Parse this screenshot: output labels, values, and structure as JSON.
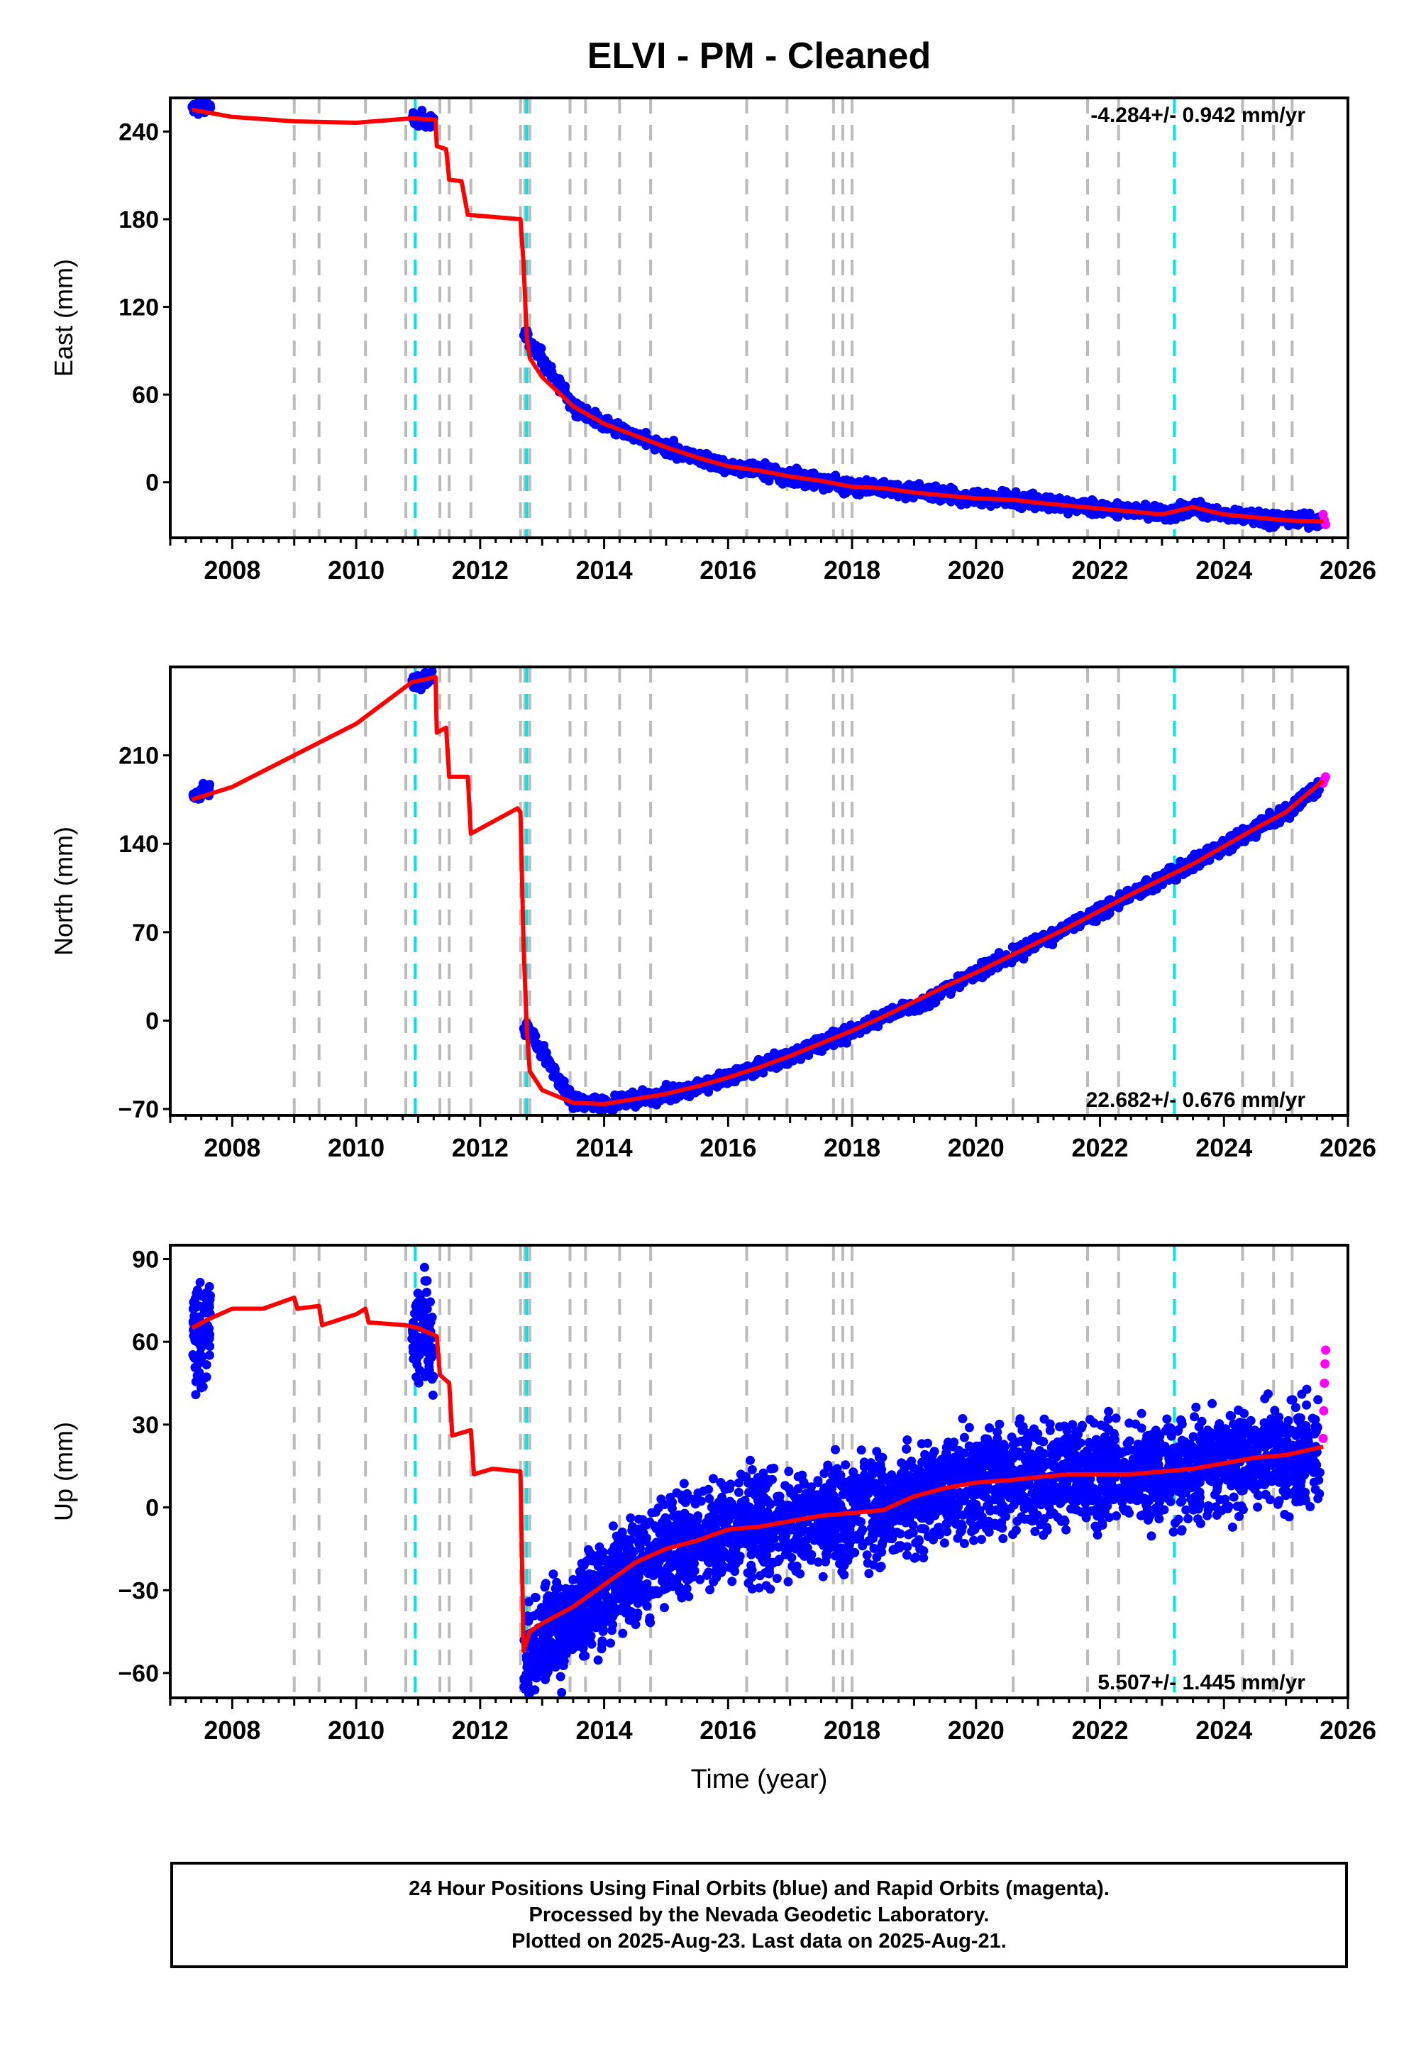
{
  "title": "ELVI  - PM - Cleaned",
  "colors": {
    "final": "#0000ff",
    "rapid": "#ff00ff",
    "model": "#ff0000",
    "event_gray": "#bbbbbb",
    "event_cyan": "#00e5e5"
  },
  "xaxis": {
    "label": "Time (year)",
    "range": [
      2007.0,
      2026.0
    ],
    "ticks": [
      2008,
      2010,
      2012,
      2014,
      2016,
      2018,
      2020,
      2022,
      2024,
      2026
    ]
  },
  "events": {
    "gray": [
      2009.0,
      2009.4,
      2010.15,
      2010.8,
      2011.35,
      2011.5,
      2011.85,
      2012.65,
      2012.72,
      2012.8,
      2013.45,
      2013.7,
      2014.25,
      2014.75,
      2016.3,
      2016.95,
      2017.7,
      2017.85,
      2018.0,
      2020.6,
      2021.8,
      2022.3,
      2024.3,
      2024.8,
      2025.1
    ],
    "cyan": [
      2010.95,
      2012.75,
      2023.2
    ]
  },
  "footer": {
    "line1": "24 Hour Positions Using Final Orbits (blue) and Rapid Orbits (magenta).",
    "line2": "Processed by the Nevada Geodetic Laboratory.",
    "line3": "Plotted on 2025-Aug-23. Last data on 2025-Aug-21."
  },
  "chart_data": [
    {
      "type": "scatter",
      "component": "East",
      "ylabel": "East (mm)",
      "ylim": [
        -38,
        263
      ],
      "yticks": [
        240,
        180,
        120,
        60,
        0
      ],
      "ytick_labels": [
        "240",
        "180",
        "120",
        "60",
        "0"
      ],
      "velocity": "-4.284+/- 0.942 mm/yr",
      "velocity_position": "top-right",
      "series": [
        {
          "role": "model",
          "x": [
            2007.35,
            2008.0,
            2009.0,
            2010.0,
            2010.9,
            2011.28,
            2011.3,
            2011.45,
            2011.5,
            2011.7,
            2011.8,
            2012.65,
            2012.7,
            2012.75,
            2012.8,
            2013.0,
            2013.5,
            2014.0,
            2014.5,
            2015.0,
            2015.5,
            2016.0,
            2016.5,
            2017.0,
            2017.5,
            2018.0,
            2018.5,
            2019.0,
            2019.5,
            2020.0,
            2020.6,
            2021.0,
            2021.5,
            2022.0,
            2022.5,
            2023.0,
            2023.5,
            2024.0,
            2024.5,
            2025.0,
            2025.6
          ],
          "y": [
            255,
            250,
            247,
            246,
            249,
            248,
            230,
            228,
            207,
            206,
            183,
            180,
            150,
            100,
            85,
            72,
            52,
            40,
            32,
            24,
            17,
            11,
            8,
            4,
            1,
            -3,
            -4,
            -7,
            -9,
            -11,
            -12,
            -14,
            -16,
            -18,
            -20,
            -22,
            -17,
            -22,
            -24,
            -26,
            -27
          ]
        },
        {
          "role": "final",
          "x": [
            2007.4,
            2007.6,
            2010.95,
            2011.1,
            2011.2,
            2012.75,
            2013.5,
            2014.0,
            2014.5,
            2015.0,
            2015.5,
            2016.0,
            2016.5,
            2017.0,
            2017.5,
            2018.0,
            2018.5,
            2019.2,
            2019.6,
            2020.0,
            2020.5,
            2021.0,
            2021.5,
            2022.0,
            2022.5,
            2023.0,
            2023.5,
            2024.0,
            2024.5,
            2025.0,
            2025.5
          ],
          "y": [
            257,
            256,
            248,
            249,
            248,
            100,
            52,
            40,
            32,
            24,
            17,
            11,
            8,
            4,
            1,
            -3,
            -4,
            -7,
            -9,
            -11,
            -12,
            -14,
            -16,
            -18,
            -20,
            -22,
            -18,
            -22,
            -24,
            -26,
            -27
          ]
        },
        {
          "role": "rapid",
          "x": [
            2025.6,
            2025.62,
            2025.64
          ],
          "y": [
            -22,
            -26,
            -29
          ]
        }
      ]
    },
    {
      "type": "scatter",
      "component": "North",
      "ylabel": "North (mm)",
      "ylim": [
        -75,
        280
      ],
      "yticks": [
        210,
        140,
        70,
        0,
        -70
      ],
      "ytick_labels": [
        "210",
        "140",
        "70",
        "0",
        "−70"
      ],
      "velocity": "22.682+/- 0.676 mm/yr",
      "velocity_position": "bottom-right",
      "series": [
        {
          "role": "model",
          "x": [
            2007.35,
            2008.0,
            2009.0,
            2010.0,
            2010.9,
            2011.28,
            2011.3,
            2011.45,
            2011.5,
            2011.8,
            2011.85,
            2012.6,
            2012.65,
            2012.7,
            2012.75,
            2012.8,
            2013.0,
            2013.5,
            2014.0,
            2014.5,
            2015.0,
            2015.5,
            2016.0,
            2016.5,
            2017.0,
            2017.5,
            2018.0,
            2018.5,
            2019.0,
            2019.5,
            2020.0,
            2020.5,
            2021.0,
            2021.5,
            2022.0,
            2022.5,
            2023.0,
            2023.5,
            2024.0,
            2024.5,
            2025.0,
            2025.6
          ],
          "y": [
            175,
            185,
            210,
            235,
            268,
            272,
            228,
            232,
            193,
            193,
            148,
            168,
            165,
            60,
            -5,
            -40,
            -55,
            -65,
            -66,
            -62,
            -58,
            -52,
            -45,
            -37,
            -28,
            -18,
            -8,
            3,
            15,
            27,
            38,
            50,
            62,
            74,
            87,
            100,
            112,
            124,
            138,
            152,
            165,
            190
          ]
        },
        {
          "role": "final",
          "x": [
            2007.4,
            2007.6,
            2010.95,
            2011.1,
            2011.2,
            2012.75,
            2013.5,
            2014.0,
            2014.5,
            2015.0,
            2015.5,
            2016.0,
            2016.5,
            2017.0,
            2017.5,
            2018.0,
            2018.5,
            2019.2,
            2019.6,
            2020.0,
            2020.5,
            2021.0,
            2021.5,
            2022.0,
            2022.5,
            2023.0,
            2023.5,
            2024.0,
            2024.5,
            2025.0,
            2025.5
          ],
          "y": [
            176,
            185,
            268,
            270,
            272,
            -5,
            -65,
            -66,
            -62,
            -58,
            -52,
            -45,
            -37,
            -28,
            -18,
            -8,
            3,
            15,
            27,
            38,
            50,
            62,
            74,
            87,
            100,
            112,
            124,
            138,
            152,
            165,
            185
          ]
        },
        {
          "role": "rapid",
          "x": [
            2025.6,
            2025.62,
            2025.64
          ],
          "y": [
            188,
            191,
            193
          ]
        }
      ]
    },
    {
      "type": "scatter",
      "component": "Up",
      "ylabel": "Up (mm)",
      "ylim": [
        -69,
        95
      ],
      "yticks": [
        90,
        60,
        30,
        0,
        -30,
        -60
      ],
      "ytick_labels": [
        "90",
        "60",
        "30",
        "0",
        "−30",
        "−60"
      ],
      "velocity": "5.507+/- 1.445 mm/yr",
      "velocity_position": "bottom-right",
      "series": [
        {
          "role": "model",
          "x": [
            2007.35,
            2007.6,
            2008.0,
            2008.5,
            2009.0,
            2009.05,
            2009.4,
            2009.45,
            2010.0,
            2010.15,
            2010.2,
            2010.8,
            2011.0,
            2011.3,
            2011.35,
            2011.5,
            2011.55,
            2011.85,
            2011.9,
            2012.2,
            2012.65,
            2012.7,
            2012.8,
            2013.0,
            2013.5,
            2014.0,
            2014.5,
            2015.0,
            2015.5,
            2016.0,
            2016.5,
            2017.0,
            2017.5,
            2018.0,
            2018.5,
            2019.0,
            2019.5,
            2020.0,
            2020.6,
            2021.0,
            2021.5,
            2022.0,
            2022.5,
            2023.0,
            2023.5,
            2024.0,
            2024.5,
            2025.0,
            2025.6
          ],
          "y": [
            65,
            68,
            72,
            72,
            76,
            72,
            73,
            66,
            70,
            72,
            67,
            66,
            65,
            62,
            48,
            45,
            26,
            28,
            12,
            14,
            13,
            -52,
            -45,
            -42,
            -36,
            -28,
            -20,
            -15,
            -12,
            -8,
            -7,
            -5,
            -3,
            -2,
            -1,
            4,
            7,
            9,
            10,
            11,
            12,
            12,
            12,
            13,
            14,
            16,
            18,
            19,
            22
          ]
        },
        {
          "role": "final",
          "x": [
            2007.4,
            2007.5,
            2007.6,
            2010.95,
            2011.1,
            2011.2,
            2012.75,
            2013.5,
            2014.0,
            2014.5,
            2015.0,
            2015.5,
            2016.0,
            2016.5,
            2017.0,
            2017.5,
            2018.0,
            2018.5,
            2019.2,
            2019.6,
            2020.0,
            2020.5,
            2021.0,
            2021.5,
            2022.0,
            2022.5,
            2023.0,
            2023.5,
            2024.0,
            2024.5,
            2025.0,
            2025.5
          ],
          "y": [
            64,
            62,
            66,
            62,
            65,
            58,
            -55,
            -40,
            -30,
            -22,
            -16,
            -11,
            -8,
            -7,
            -5,
            -3,
            -2,
            -1,
            4,
            7,
            9,
            10,
            11,
            12,
            12,
            12,
            13,
            14,
            16,
            18,
            19,
            20
          ]
        },
        {
          "role": "rapid",
          "x": [
            2025.6,
            2025.61,
            2025.62,
            2025.63,
            2025.64
          ],
          "y": [
            25,
            35,
            45,
            52,
            57
          ]
        }
      ]
    }
  ]
}
